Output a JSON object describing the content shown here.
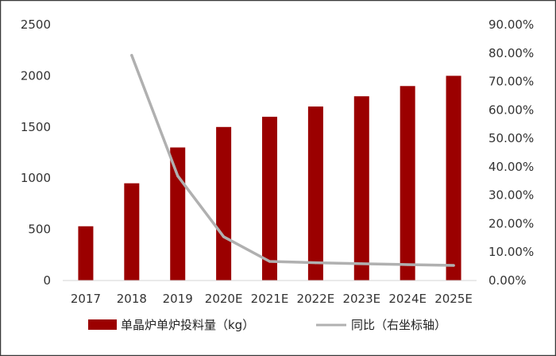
{
  "chart_data": {
    "type": "bar",
    "categories": [
      "2017",
      "2018",
      "2019",
      "2020E",
      "2021E",
      "2022E",
      "2023E",
      "2024E",
      "2025E"
    ],
    "series": [
      {
        "name": "单晶炉单炉投料量（kg）",
        "type": "bar",
        "axis": "left",
        "color": "#9b0000",
        "values": [
          530,
          950,
          1300,
          1500,
          1600,
          1700,
          1800,
          1900,
          2000
        ]
      },
      {
        "name": "同比（右坐标轴）",
        "type": "line",
        "axis": "right",
        "color": "#b0b0b0",
        "values": [
          null,
          79.2,
          36.8,
          15.4,
          6.7,
          6.25,
          5.9,
          5.6,
          5.3
        ]
      }
    ],
    "y_left": {
      "ylim": [
        0,
        2500
      ],
      "ticks": [
        0,
        500,
        1000,
        1500,
        2000,
        2500
      ],
      "tick_labels": [
        "0",
        "500",
        "1000",
        "1500",
        "2000",
        "2500"
      ]
    },
    "y_right": {
      "ylim": [
        0,
        90
      ],
      "ticks": [
        0,
        10,
        20,
        30,
        40,
        50,
        60,
        70,
        80,
        90
      ],
      "tick_labels": [
        "0.00%",
        "10.00%",
        "20.00%",
        "30.00%",
        "40.00%",
        "50.00%",
        "60.00%",
        "70.00%",
        "80.00%",
        "90.00%"
      ]
    },
    "legend_position": "bottom",
    "grid": false
  }
}
